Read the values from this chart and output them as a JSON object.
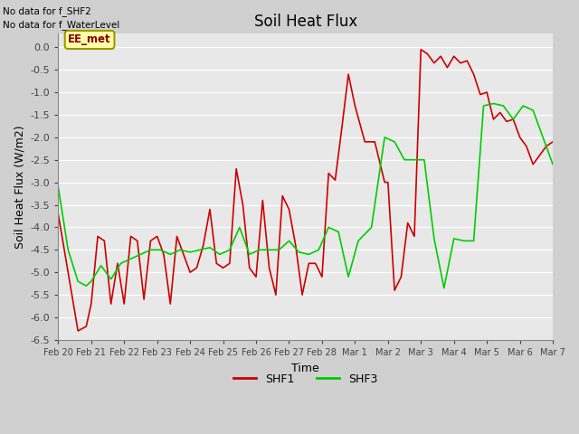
{
  "title": "Soil Heat Flux",
  "xlabel": "Time",
  "ylabel": "Soil Heat Flux (W/m2)",
  "ylim": [
    -6.5,
    0.3
  ],
  "note1": "No data for f_SHF2",
  "note2": "No data for f_WaterLevel",
  "legend_label": "EE_met",
  "fig_bg_color": "#d0d0d0",
  "plot_bg_color": "#e8e8e8",
  "shf1_color": "#cc0000",
  "shf3_color": "#00cc00",
  "tick_labels": [
    "Feb 20",
    "Feb 21",
    "Feb 22",
    "Feb 23",
    "Feb 24",
    "Feb 25",
    "Feb 26",
    "Feb 27",
    "Feb 28",
    "Mar 1",
    "Mar 2",
    "Mar 3",
    "Mar 4",
    "Mar 5",
    "Mar 6",
    "Mar 7"
  ],
  "shf1_x": [
    0,
    0.3,
    0.6,
    0.85,
    1.0,
    1.2,
    1.4,
    1.6,
    1.8,
    2.0,
    2.2,
    2.4,
    2.6,
    2.8,
    3.0,
    3.2,
    3.4,
    3.6,
    3.8,
    4.0,
    4.2,
    4.4,
    4.6,
    4.8,
    5.0,
    5.2,
    5.4,
    5.6,
    5.8,
    6.0,
    6.2,
    6.4,
    6.6,
    6.8,
    7.0,
    7.2,
    7.4,
    7.6,
    7.8,
    8.0,
    8.2,
    8.4,
    8.6,
    8.8,
    9.0,
    9.3,
    9.6,
    9.9,
    10.0,
    10.2,
    10.4,
    10.6,
    10.8,
    11.0,
    11.2,
    11.4,
    11.6,
    11.8,
    12.0,
    12.2,
    12.4,
    12.6,
    12.8,
    13.0,
    13.2,
    13.4,
    13.6,
    13.8,
    14.0,
    14.2,
    14.4,
    14.6,
    14.8,
    15.0
  ],
  "shf1_y": [
    -3.7,
    -5.0,
    -6.3,
    -6.2,
    -5.7,
    -4.2,
    -4.3,
    -5.7,
    -4.8,
    -5.7,
    -4.2,
    -4.3,
    -5.6,
    -4.3,
    -4.2,
    -4.6,
    -5.7,
    -4.2,
    -4.6,
    -5.0,
    -4.9,
    -4.4,
    -3.6,
    -4.8,
    -4.9,
    -4.8,
    -2.7,
    -3.5,
    -4.9,
    -5.1,
    -3.4,
    -4.9,
    -5.5,
    -3.3,
    -3.6,
    -4.4,
    -5.5,
    -4.8,
    -4.8,
    -5.1,
    -2.8,
    -2.95,
    -1.8,
    -0.6,
    -1.3,
    -2.1,
    -2.1,
    -3.0,
    -3.0,
    -5.4,
    -5.1,
    -3.9,
    -4.2,
    -0.05,
    -0.15,
    -0.35,
    -0.2,
    -0.45,
    -0.2,
    -0.35,
    -0.3,
    -0.6,
    -1.05,
    -1.0,
    -1.6,
    -1.45,
    -1.65,
    -1.6,
    -2.0,
    -2.2,
    -2.6,
    -2.4,
    -2.2,
    -2.1
  ],
  "shf3_x": [
    0,
    0.3,
    0.6,
    0.85,
    1.0,
    1.3,
    1.6,
    1.9,
    2.2,
    2.5,
    2.8,
    3.1,
    3.4,
    3.7,
    4.0,
    4.3,
    4.6,
    4.9,
    5.2,
    5.5,
    5.8,
    6.1,
    6.4,
    6.7,
    7.0,
    7.3,
    7.6,
    7.9,
    8.2,
    8.5,
    8.8,
    9.1,
    9.5,
    9.9,
    10.2,
    10.5,
    10.8,
    11.1,
    11.4,
    11.7,
    12.0,
    12.3,
    12.6,
    12.9,
    13.2,
    13.5,
    13.8,
    14.1,
    14.4,
    14.7,
    15.0
  ],
  "shf3_y": [
    -3.1,
    -4.5,
    -5.2,
    -5.3,
    -5.2,
    -4.85,
    -5.15,
    -4.8,
    -4.7,
    -4.6,
    -4.5,
    -4.5,
    -4.6,
    -4.5,
    -4.55,
    -4.5,
    -4.45,
    -4.6,
    -4.5,
    -4.0,
    -4.6,
    -4.5,
    -4.5,
    -4.5,
    -4.3,
    -4.55,
    -4.6,
    -4.5,
    -4.0,
    -4.1,
    -5.1,
    -4.3,
    -4.0,
    -2.0,
    -2.1,
    -2.5,
    -2.5,
    -2.5,
    -4.25,
    -5.35,
    -4.25,
    -4.3,
    -4.3,
    -1.3,
    -1.25,
    -1.3,
    -1.6,
    -1.3,
    -1.4,
    -2.0,
    -2.6
  ]
}
